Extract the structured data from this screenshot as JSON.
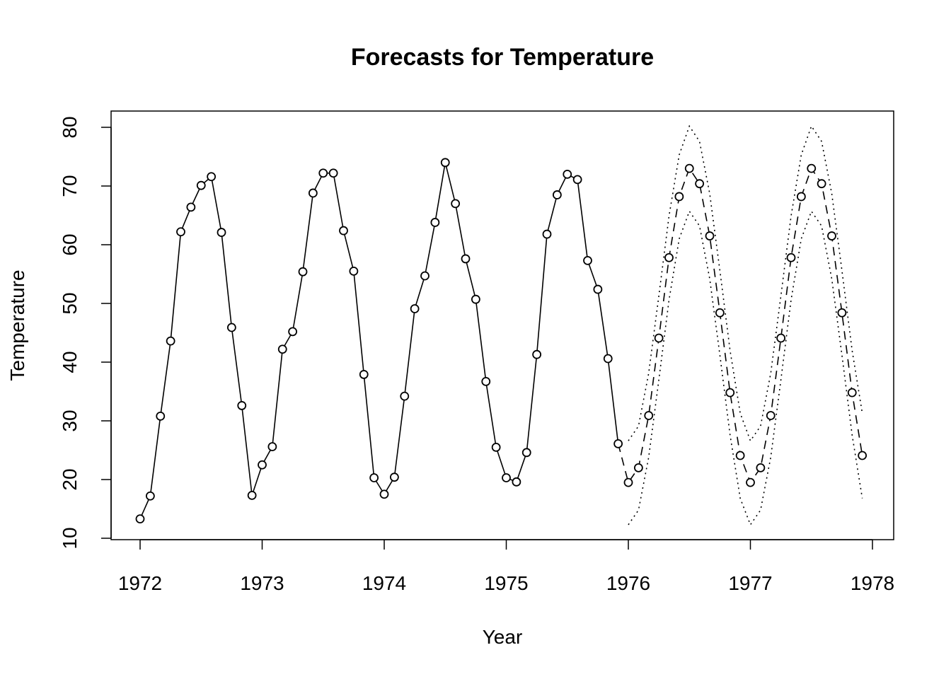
{
  "chart_data": {
    "type": "line",
    "title": "Forecasts for Temperature",
    "xlabel": "Year",
    "ylabel": "Temperature",
    "xlim": [
      1971.9,
      1978.3
    ],
    "ylim": [
      10,
      83
    ],
    "x_ticks": [
      1972,
      1973,
      1974,
      1975,
      1976,
      1977,
      1978
    ],
    "y_ticks": [
      10,
      20,
      30,
      40,
      50,
      60,
      70,
      80
    ],
    "grid": false,
    "series": [
      {
        "role": "observed",
        "style": "solid line with open circles",
        "start": 1972,
        "frequency": 12,
        "values": [
          13.3,
          17.2,
          30.8,
          43.6,
          62.2,
          66.4,
          70.1,
          71.6,
          62.1,
          45.9,
          32.6,
          17.3,
          22.5,
          25.6,
          42.2,
          45.2,
          55.4,
          68.8,
          72.2,
          72.2,
          62.4,
          55.5,
          37.9,
          20.3,
          17.5,
          20.4,
          34.2,
          49.1,
          54.7,
          63.8,
          74.0,
          67.0,
          57.6,
          50.7,
          36.7,
          25.5,
          20.3,
          19.6,
          24.6,
          41.3,
          61.8,
          68.5,
          72.0,
          71.1,
          57.3,
          52.4,
          40.6,
          26.1
        ]
      },
      {
        "role": "forecast",
        "style": "dashed line with open circles",
        "start": 1976,
        "frequency": 12,
        "values": [
          19.5,
          22.0,
          30.9,
          44.1,
          57.8,
          68.2,
          73.0,
          70.4,
          61.5,
          48.4,
          34.8,
          24.1,
          19.5,
          22.0,
          30.9,
          44.1,
          57.8,
          68.2,
          73.0,
          70.4,
          61.5,
          48.4,
          34.8,
          24.1
        ]
      },
      {
        "role": "lower bound",
        "style": "dotted line",
        "start": 1976,
        "frequency": 12,
        "values": [
          12.3,
          14.8,
          23.8,
          37.0,
          50.6,
          61.0,
          65.7,
          63.2,
          54.2,
          41.2,
          27.6,
          16.8,
          12.3,
          14.8,
          23.8,
          37.0,
          50.6,
          61.0,
          65.7,
          63.2,
          54.2,
          41.2,
          27.6,
          16.8
        ]
      },
      {
        "role": "upper bound",
        "style": "dotted line",
        "start": 1976,
        "frequency": 12,
        "values": [
          26.6,
          29.1,
          38.1,
          51.3,
          64.9,
          75.3,
          80.2,
          77.6,
          68.7,
          55.6,
          42.0,
          31.3,
          26.6,
          29.1,
          38.1,
          51.3,
          64.9,
          75.3,
          80.2,
          77.6,
          68.7,
          55.6,
          42.0,
          31.3
        ]
      }
    ]
  }
}
